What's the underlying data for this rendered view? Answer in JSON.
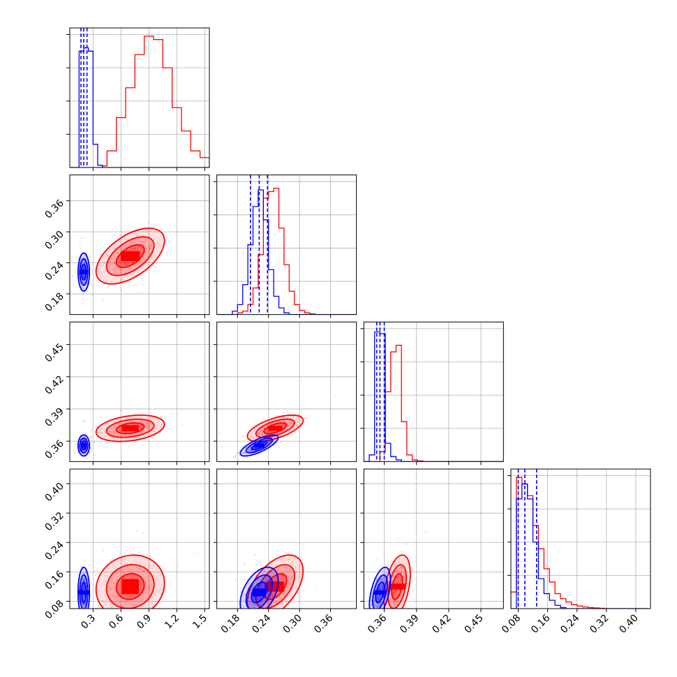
{
  "chart_data": {
    "type": "corner",
    "grid": true,
    "colors": {
      "blue": "#0000ff",
      "red": "#ff0000"
    },
    "params": [
      {
        "range": [
          0.05,
          1.55
        ],
        "ticks": [
          0.3,
          0.6,
          0.9,
          1.2,
          1.5
        ],
        "tick_labels": [
          "0.3",
          "0.6",
          "0.9",
          "1.2",
          "1.5"
        ]
      },
      {
        "range": [
          0.14,
          0.41
        ],
        "ticks": [
          0.18,
          0.24,
          0.3,
          0.36
        ],
        "tick_labels": [
          "0.18",
          "0.24",
          "0.30",
          "0.36"
        ]
      },
      {
        "range": [
          0.341,
          0.471
        ],
        "ticks": [
          0.36,
          0.39,
          0.42,
          0.45
        ],
        "tick_labels": [
          "0.36",
          "0.39",
          "0.42",
          "0.45"
        ]
      },
      {
        "range": [
          0.06,
          0.44
        ],
        "ticks": [
          0.08,
          0.16,
          0.24,
          0.32,
          0.4
        ],
        "tick_labels": [
          "0.08",
          "0.16",
          "0.24",
          "0.32",
          "0.40"
        ]
      }
    ],
    "series": [
      {
        "color_key": "blue",
        "mean": [
          0.2,
          0.222,
          0.356,
          0.104
        ],
        "sd": [
          0.025,
          0.015,
          0.004,
          0.028
        ],
        "corr": [
          [
            1,
            0,
            0,
            0
          ],
          [
            0,
            1,
            0.75,
            0.45
          ],
          [
            0,
            0.75,
            1,
            0.5
          ],
          [
            0,
            0.45,
            0.5,
            1
          ]
        ],
        "quantiles": [
          [
            0.17,
            0.2,
            0.235
          ],
          [
            0.205,
            0.222,
            0.238
          ],
          [
            0.353,
            0.356,
            0.36
          ],
          [
            0.08,
            0.098,
            0.13
          ]
        ]
      },
      {
        "color_key": "red",
        "mean": [
          0.7,
          0.253,
          0.372,
          0.12
        ],
        "sd": [
          0.15,
          0.022,
          0.005,
          0.035
        ],
        "corr": [
          [
            1,
            0.55,
            0.3,
            0.1
          ],
          [
            0.55,
            1,
            0.6,
            0.5
          ],
          [
            0.3,
            0.6,
            1,
            0.4
          ],
          [
            0.1,
            0.5,
            0.4,
            1
          ]
        ],
        "quantiles": []
      }
    ],
    "histograms": [
      {
        "bin_edges": [
          0.05,
          0.1,
          0.15,
          0.2,
          0.25,
          0.3,
          0.35,
          0.4,
          0.45,
          0.5,
          0.55,
          0.6,
          0.65,
          0.7,
          0.75,
          0.8,
          0.85,
          0.9,
          0.95,
          1.0,
          1.05,
          1.1,
          1.15,
          1.2,
          1.25,
          1.3,
          1.35,
          1.4,
          1.45,
          1.5,
          1.55
        ],
        "blue": [
          0,
          0,
          3.5,
          3.6,
          3.5,
          0.7,
          0.07,
          0,
          0,
          0,
          0,
          0,
          0,
          0,
          0,
          0,
          0,
          0,
          0,
          0,
          0,
          0,
          0,
          0,
          0,
          0,
          0,
          0,
          0,
          0
        ],
        "red": [
          0,
          0,
          0,
          0,
          0,
          0,
          0,
          0.05,
          0.5,
          0.5,
          1.5,
          1.5,
          2.4,
          2.4,
          3.4,
          3.4,
          3.95,
          3.95,
          3.85,
          3.85,
          3.0,
          3.0,
          1.8,
          1.8,
          1.1,
          1.1,
          0.5,
          0.5,
          0.3,
          0.3
        ]
      },
      {
        "bin_edges": [
          0.14,
          0.15,
          0.16,
          0.17,
          0.18,
          0.19,
          0.2,
          0.21,
          0.22,
          0.23,
          0.24,
          0.25,
          0.26,
          0.27,
          0.28,
          0.29,
          0.3,
          0.31,
          0.32,
          0.33,
          0.34,
          0.35,
          0.36,
          0.37,
          0.38,
          0.39,
          0.4,
          0.41
        ],
        "blue": [
          0,
          0,
          0,
          0.1,
          0.3,
          0.9,
          2.1,
          3.25,
          3.75,
          2.85,
          1.35,
          0.55,
          0.2,
          0.05,
          0,
          0,
          0,
          0,
          0,
          0,
          0,
          0,
          0,
          0,
          0,
          0,
          0
        ],
        "red": [
          0,
          0,
          0,
          0,
          0.05,
          0.1,
          0.3,
          0.8,
          1.8,
          3.5,
          3.7,
          3.8,
          2.6,
          1.5,
          0.7,
          0.3,
          0.12,
          0.05,
          0.02,
          0,
          0,
          0,
          0,
          0,
          0,
          0,
          0
        ]
      },
      {
        "bin_edges": [
          0.341,
          0.346,
          0.351,
          0.356,
          0.361,
          0.366,
          0.371,
          0.376,
          0.381,
          0.386,
          0.391,
          0.396,
          0.401,
          0.406,
          0.411,
          0.416,
          0.421,
          0.426,
          0.431,
          0.436,
          0.441,
          0.446,
          0.451,
          0.456,
          0.461,
          0.466,
          0.471
        ],
        "blue": [
          0,
          0.2,
          3.9,
          3.85,
          0.55,
          0.15,
          0.05,
          0,
          0,
          0,
          0,
          0,
          0,
          0,
          0,
          0,
          0,
          0,
          0,
          0,
          0,
          0,
          0,
          0,
          0,
          0
        ],
        "red": [
          0,
          0,
          0,
          0.3,
          2.1,
          3.3,
          3.5,
          1.2,
          0.2,
          0.05,
          0.02,
          0,
          0,
          0,
          0,
          0,
          0,
          0,
          0,
          0,
          0,
          0,
          0,
          0,
          0,
          0
        ]
      },
      {
        "bin_edges": [
          0.06,
          0.075,
          0.09,
          0.105,
          0.12,
          0.135,
          0.15,
          0.165,
          0.18,
          0.195,
          0.21,
          0.225,
          0.24,
          0.255,
          0.27,
          0.285,
          0.3,
          0.315,
          0.33,
          0.345,
          0.36,
          0.375,
          0.39,
          0.405,
          0.42,
          0.435
        ],
        "blue": [
          0,
          3.3,
          3.75,
          3.3,
          2.0,
          0.9,
          0.45,
          0.25,
          0.1,
          0.03,
          0,
          0,
          0,
          0,
          0,
          0,
          0,
          0,
          0,
          0,
          0,
          0,
          0,
          0,
          0
        ],
        "red": [
          0.5,
          3.95,
          3.75,
          3.4,
          2.5,
          1.8,
          1.2,
          0.8,
          0.45,
          0.3,
          0.2,
          0.12,
          0.08,
          0.05,
          0.03,
          0.02,
          0.01,
          0,
          0,
          0,
          0,
          0,
          0,
          0,
          0
        ]
      }
    ],
    "hist_ylim": [
      0,
      4.2
    ]
  }
}
